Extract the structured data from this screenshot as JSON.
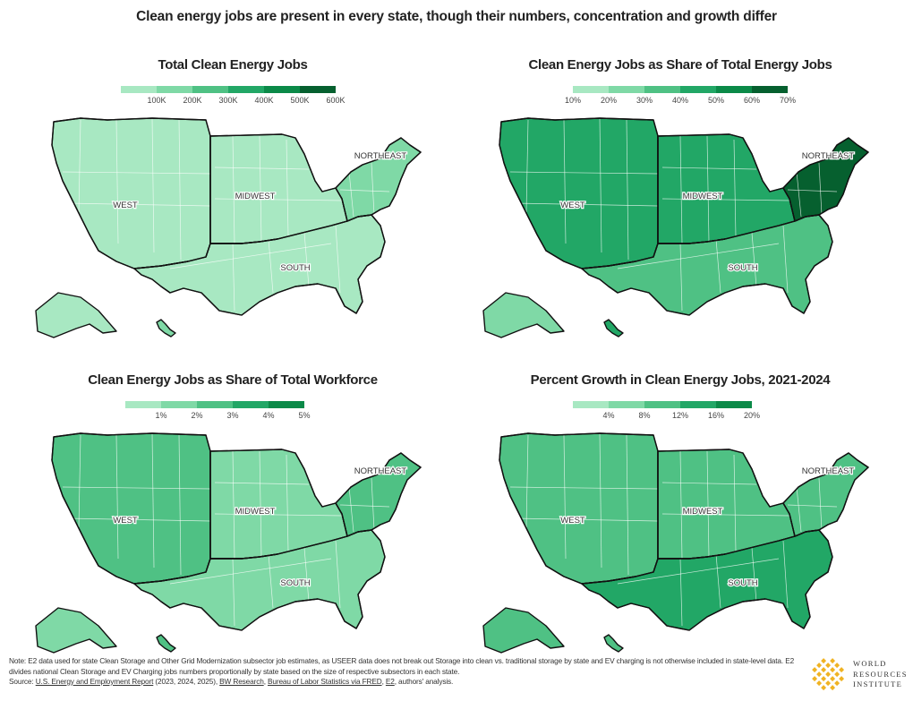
{
  "main_title": "Clean energy jobs are present in every state, though their numbers, concentration and growth differ",
  "region_labels": [
    "WEST",
    "MIDWEST",
    "SOUTH",
    "NORTHEAST"
  ],
  "colors": {
    "border": "#111111",
    "state_line": "#ffffff"
  },
  "panels": [
    {
      "title": "Total Clean Energy Jobs",
      "legend": {
        "ticks": [
          "100K",
          "200K",
          "300K",
          "400K",
          "500K",
          "600K"
        ],
        "colors": [
          "#a8e8c2",
          "#7fd9a6",
          "#4fc184",
          "#22a766",
          "#0b8a48",
          "#06602f"
        ]
      },
      "region_values": {
        "west": 0.0,
        "midwest": 0.0,
        "south": 0.0,
        "northeast": 1.0,
        "alaska": 0.0,
        "hawaii": 1.0
      }
    },
    {
      "title": "Clean Energy Jobs as Share of Total Energy Jobs",
      "legend": {
        "ticks": [
          "10%",
          "20%",
          "30%",
          "40%",
          "50%",
          "60%",
          "70%"
        ],
        "colors": [
          "#a8e8c2",
          "#7fd9a6",
          "#4fc184",
          "#22a766",
          "#0b8a48",
          "#06602f"
        ]
      },
      "region_values": {
        "west": 3.0,
        "midwest": 3.0,
        "south": 2.0,
        "northeast": 5.0,
        "alaska": 1.0,
        "hawaii": 3.0
      }
    },
    {
      "title": "Clean Energy Jobs as Share of Total Workforce",
      "legend": {
        "ticks": [
          "1%",
          "2%",
          "3%",
          "4%",
          "5%"
        ],
        "colors": [
          "#a8e8c2",
          "#7fd9a6",
          "#4fc184",
          "#22a766",
          "#0b8a48"
        ]
      },
      "region_values": {
        "west": 2.0,
        "midwest": 1.0,
        "south": 1.0,
        "northeast": 2.0,
        "alaska": 1.0,
        "hawaii": 2.0
      }
    },
    {
      "title": "Percent Growth in Clean Energy Jobs, 2021-2024",
      "legend": {
        "ticks": [
          "4%",
          "8%",
          "12%",
          "16%",
          "20%"
        ],
        "colors": [
          "#a8e8c2",
          "#7fd9a6",
          "#4fc184",
          "#22a766",
          "#0b8a48"
        ]
      },
      "region_values": {
        "west": 2.0,
        "midwest": 2.0,
        "south": 3.0,
        "northeast": 2.0,
        "alaska": 2.0,
        "hawaii": 2.0
      }
    }
  ],
  "footer": {
    "note_line1": "Note: E2 data used for state Clean Storage and Other Grid Modernization subsector job estimates, as USEER data does not break out Storage into clean vs. traditional storage by state and EV charging is not otherwise included in state-level data. E2",
    "note_line2": "divides national Clean Storage and EV Charging jobs numbers proportionally by state based on the size of respective subsectors in each state.",
    "source_prefix": "Source: ",
    "source_link1": "U.S. Energy and Employment Report",
    "source_text1": " (2023, 2024, 2025), ",
    "source_link2": "BW Research",
    "source_sep": ", ",
    "source_link3": "Bureau of Labor Statistics via FRED",
    "source_link4": "E2",
    "source_suffix": ", authors' analysis."
  },
  "logo": {
    "line1": "WORLD",
    "line2": "RESOURCES",
    "line3": "INSTITUTE",
    "color": "#f0b323"
  }
}
